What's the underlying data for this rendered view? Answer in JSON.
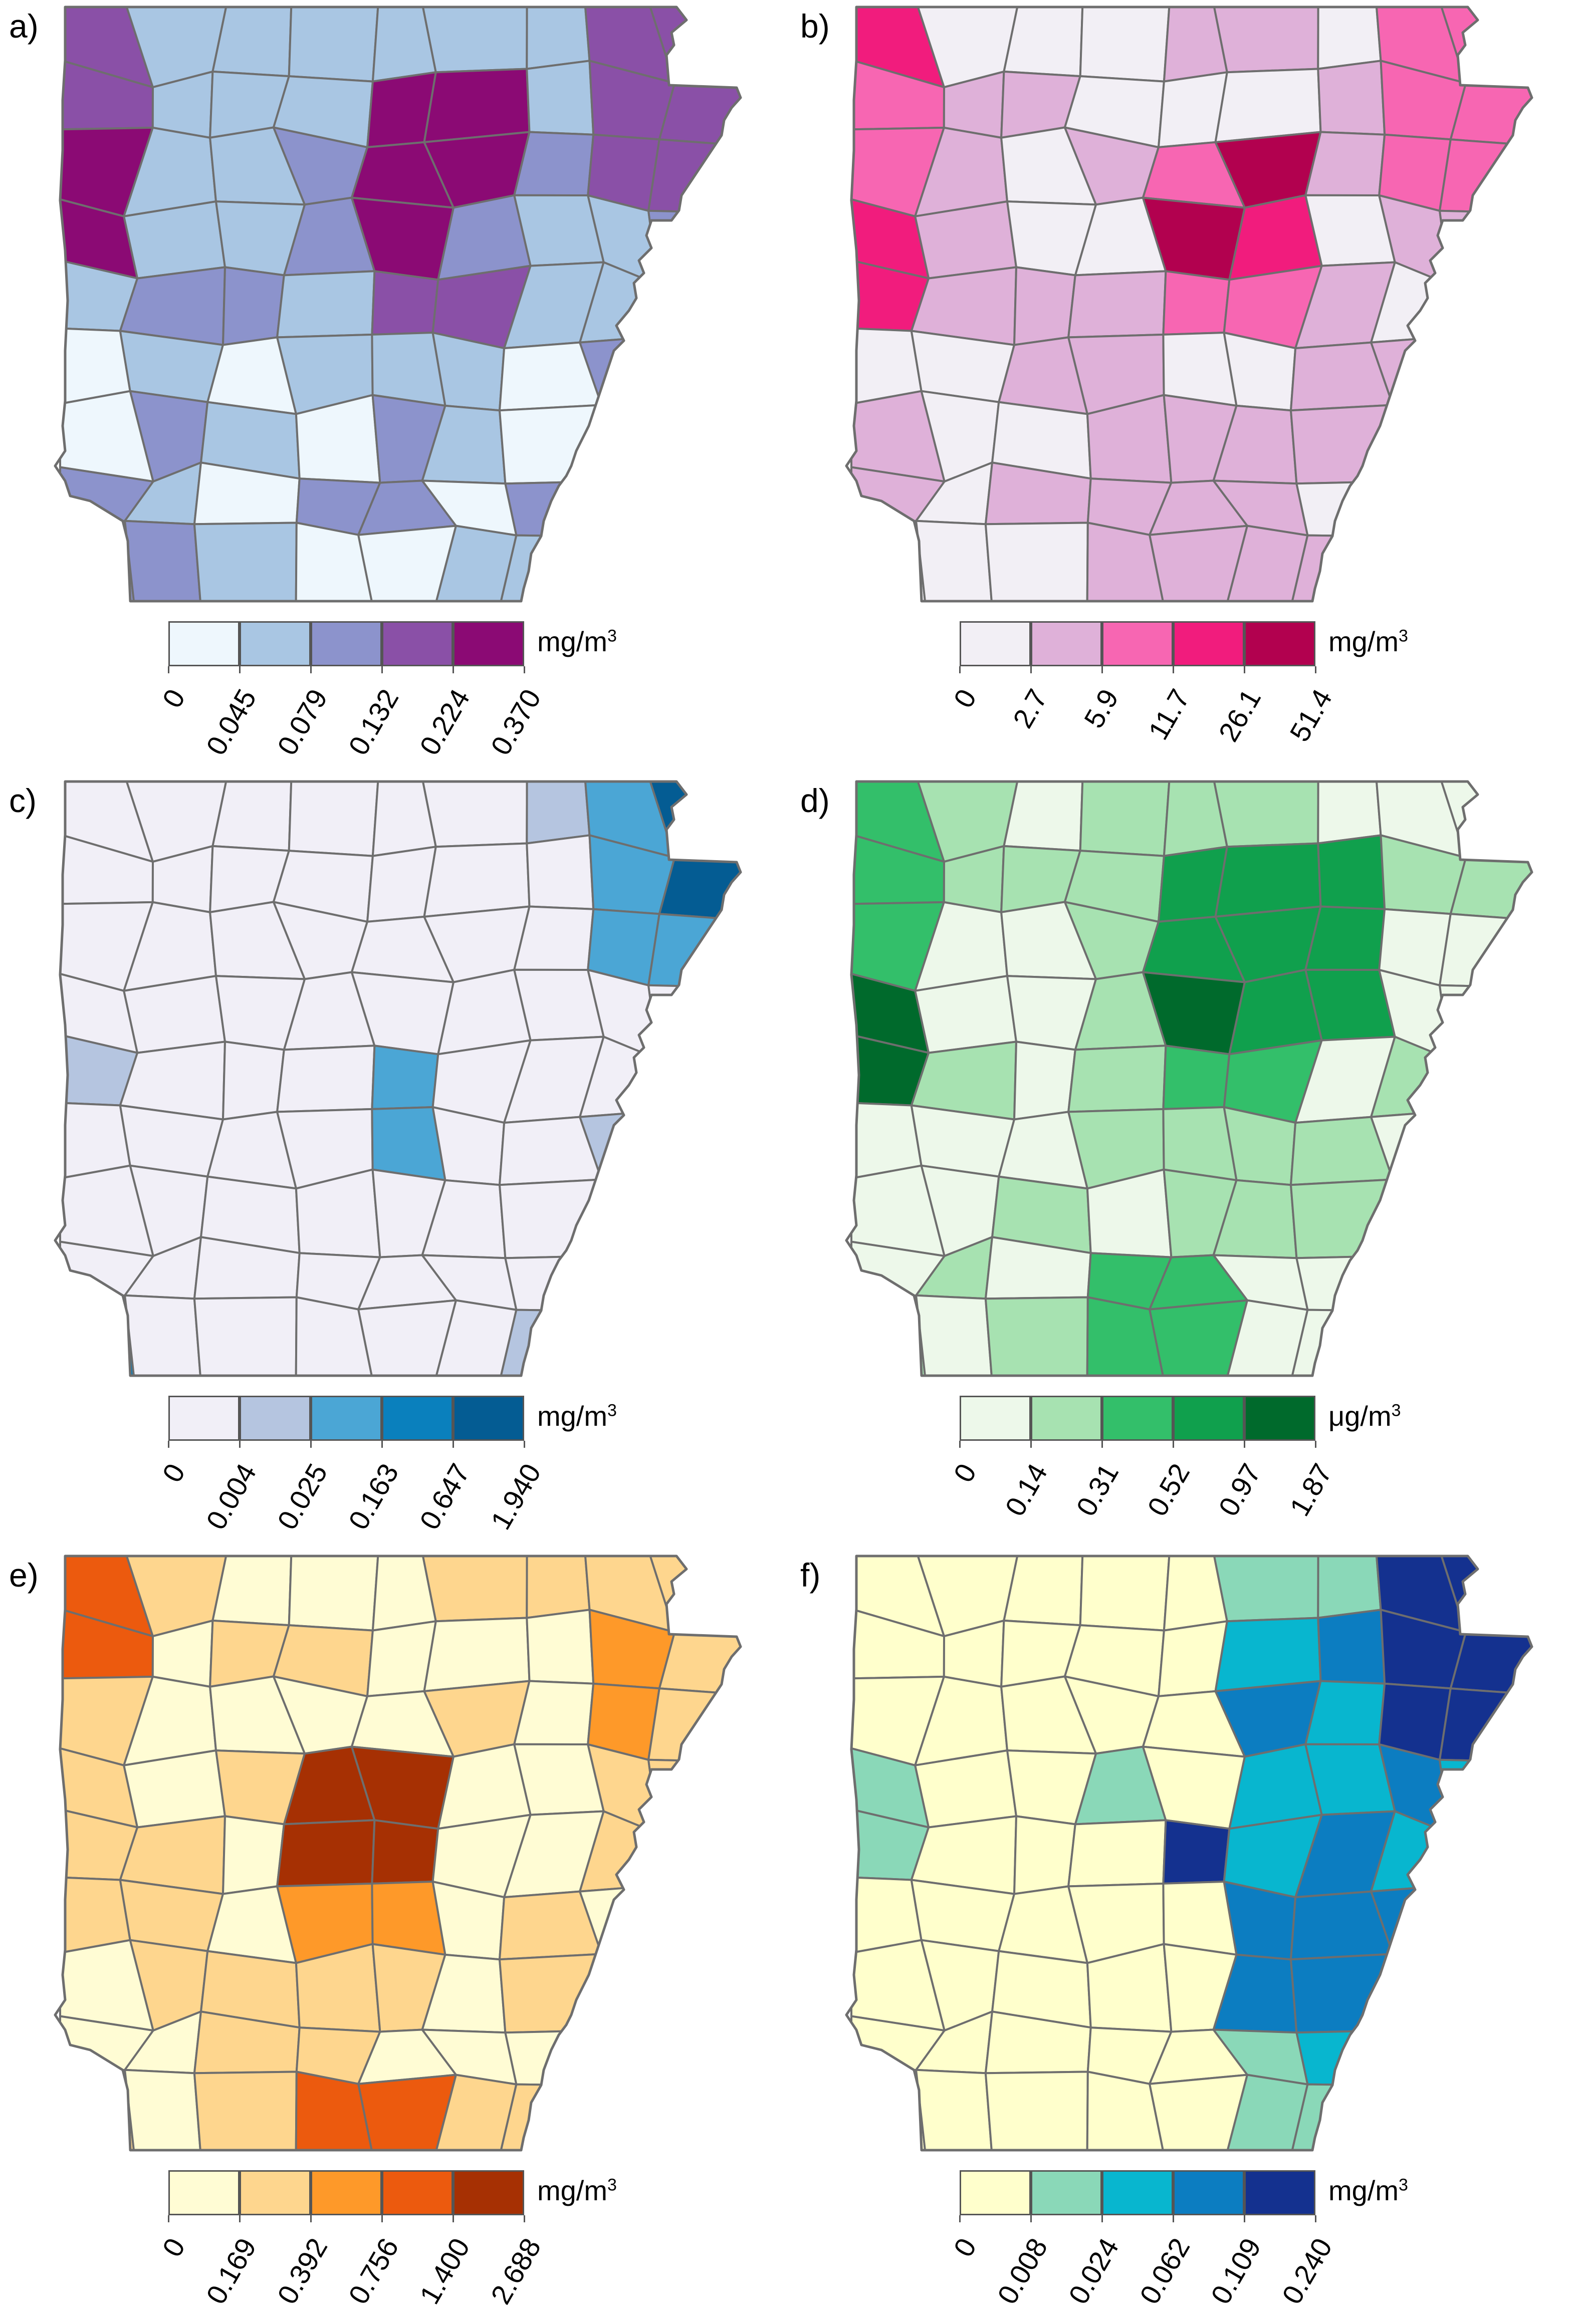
{
  "panels": [
    {
      "label": "a)",
      "unit": "mg/m",
      "unit_sup": "3",
      "legend_breaks": [
        "0",
        "0.045",
        "0.079",
        "0.132",
        "0.224",
        "0.370"
      ],
      "palette": [
        "#eef7fd",
        "#a9c6e3",
        "#8c93cc",
        "#8a50a7",
        "#8b0a74"
      ]
    },
    {
      "label": "b)",
      "unit": "mg/m",
      "unit_sup": "3",
      "legend_breaks": [
        "0",
        "2.7",
        "5.9",
        "11.7",
        "26.1",
        "51.4"
      ],
      "palette": [
        "#f2eff5",
        "#dfb1d9",
        "#f766b2",
        "#f11c7d",
        "#b2014f"
      ]
    },
    {
      "label": "c)",
      "unit": "mg/m",
      "unit_sup": "3",
      "legend_breaks": [
        "0",
        "0.004",
        "0.025",
        "0.163",
        "0.647",
        "1.940"
      ],
      "palette": [
        "#f1eff7",
        "#b5c5e0",
        "#4ba6d5",
        "#0a80bd",
        "#045c93"
      ]
    },
    {
      "label": "d)",
      "unit": "μg/m",
      "unit_sup": "3",
      "legend_breaks": [
        "0",
        "0.14",
        "0.31",
        "0.52",
        "0.97",
        "1.87"
      ],
      "palette": [
        "#edf8ea",
        "#a7e2b1",
        "#33bf6a",
        "#10a04d",
        "#006a2c"
      ]
    },
    {
      "label": "e)",
      "unit": "mg/m",
      "unit_sup": "3",
      "legend_breaks": [
        "0",
        "0.169",
        "0.392",
        "0.756",
        "1.400",
        "2.688"
      ],
      "palette": [
        "#fffcd4",
        "#fed68e",
        "#fe9929",
        "#ec5a0e",
        "#a63003"
      ]
    },
    {
      "label": "f)",
      "unit": "mg/m",
      "unit_sup": "3",
      "legend_breaks": [
        "0",
        "0.008",
        "0.024",
        "0.062",
        "0.109",
        "0.240"
      ],
      "palette": [
        "#ffffcc",
        "#8ad8b8",
        "#08b6cf",
        "#0c7dc1",
        "#14318f"
      ]
    }
  ]
}
